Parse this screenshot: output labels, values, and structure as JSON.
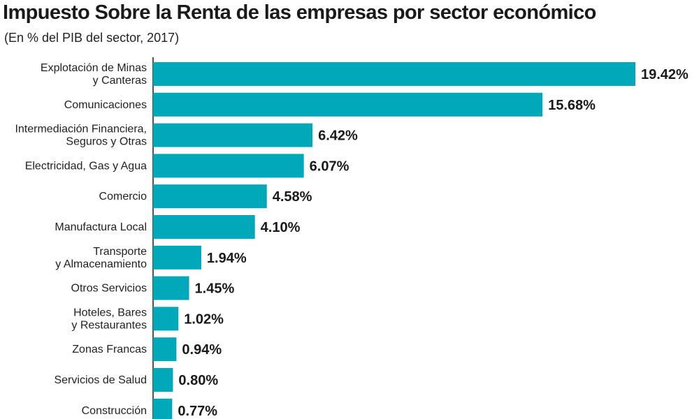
{
  "chart_data": {
    "type": "bar",
    "orientation": "horizontal",
    "title": "Impuesto Sobre la Renta de las empresas por sector económico",
    "subtitle": "(En % del PIB del sector, 2017)",
    "categories": [
      [
        "Explotación de Minas",
        "y Canteras"
      ],
      [
        "Comunicaciones"
      ],
      [
        "Intermediación Financiera,",
        "Seguros y Otras"
      ],
      [
        "Electricidad, Gas y Agua"
      ],
      [
        "Comercio"
      ],
      [
        "Manufactura Local"
      ],
      [
        "Transporte",
        "y Almacenamiento"
      ],
      [
        "Otros Servicios"
      ],
      [
        "Hoteles, Bares",
        "y Restaurantes"
      ],
      [
        "Zonas Francas"
      ],
      [
        "Servicios de Salud"
      ],
      [
        "Construcción"
      ]
    ],
    "values": [
      19.42,
      15.68,
      6.42,
      6.07,
      4.58,
      4.1,
      1.94,
      1.45,
      1.02,
      0.94,
      0.8,
      0.77
    ],
    "value_labels": [
      "19.42%",
      "15.68%",
      "6.42%",
      "6.07%",
      "4.58%",
      "4.10%",
      "1.94%",
      "1.45%",
      "1.02%",
      "0.94%",
      "0.80%",
      "0.77%"
    ],
    "xlim": [
      0,
      19.42
    ],
    "grid": false,
    "legend": "none",
    "colors": {
      "bar": "#00a9ba",
      "axis": "#1a1a1a",
      "text": "#1a1a1a"
    }
  }
}
